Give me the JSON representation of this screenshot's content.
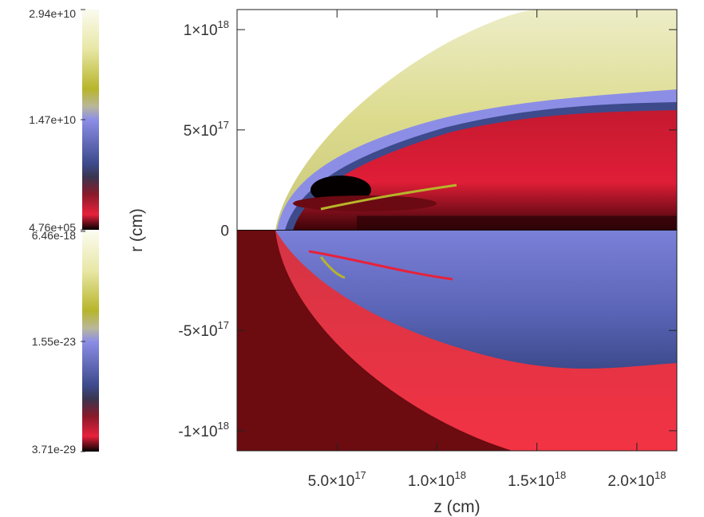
{
  "chart_data": {
    "type": "heatmap",
    "xlabel": "z (cm)",
    "ylabel": "r (cm)",
    "xlim": [
      0,
      2.2e+18
    ],
    "ylim": [
      -1.1e+18,
      1.1e+18
    ],
    "x_ticks": [
      {
        "value": 5e+17,
        "mantissa": "5.0×10",
        "exp": "17"
      },
      {
        "value": 1e+18,
        "mantissa": "1.0×10",
        "exp": "18"
      },
      {
        "value": 1.5e+18,
        "mantissa": "1.5×10",
        "exp": "18"
      },
      {
        "value": 2e+18,
        "mantissa": "2.0×10",
        "exp": "18"
      }
    ],
    "y_ticks": [
      {
        "value": 1e+18,
        "mantissa": "1×10",
        "exp": "18"
      },
      {
        "value": 5e+17,
        "mantissa": "5×10",
        "exp": "17"
      },
      {
        "value": 0,
        "mantissa": "0",
        "exp": ""
      },
      {
        "value": -5e+17,
        "mantissa": "-5×10",
        "exp": "17"
      },
      {
        "value": -1e+18,
        "mantissa": "-1×10",
        "exp": "18"
      }
    ],
    "colorbars": [
      {
        "panel": "upper",
        "tick_labels": [
          "2.94e+10",
          "1.47e+10",
          "4.76e+05"
        ]
      },
      {
        "panel": "lower",
        "tick_labels": [
          "6.46e-18",
          "1.55e-23",
          "3.71e-29"
        ]
      }
    ],
    "colors": {
      "white": "#fbfbef",
      "yellow": "#d6d46a",
      "olive": "#b7b52a",
      "lavender": "#8c8ee6",
      "blue": "#3d4a8c",
      "red": "#e8213a",
      "dark_red": "#6b0a12",
      "black": "#050000",
      "ambient": "#6c0b10"
    }
  }
}
